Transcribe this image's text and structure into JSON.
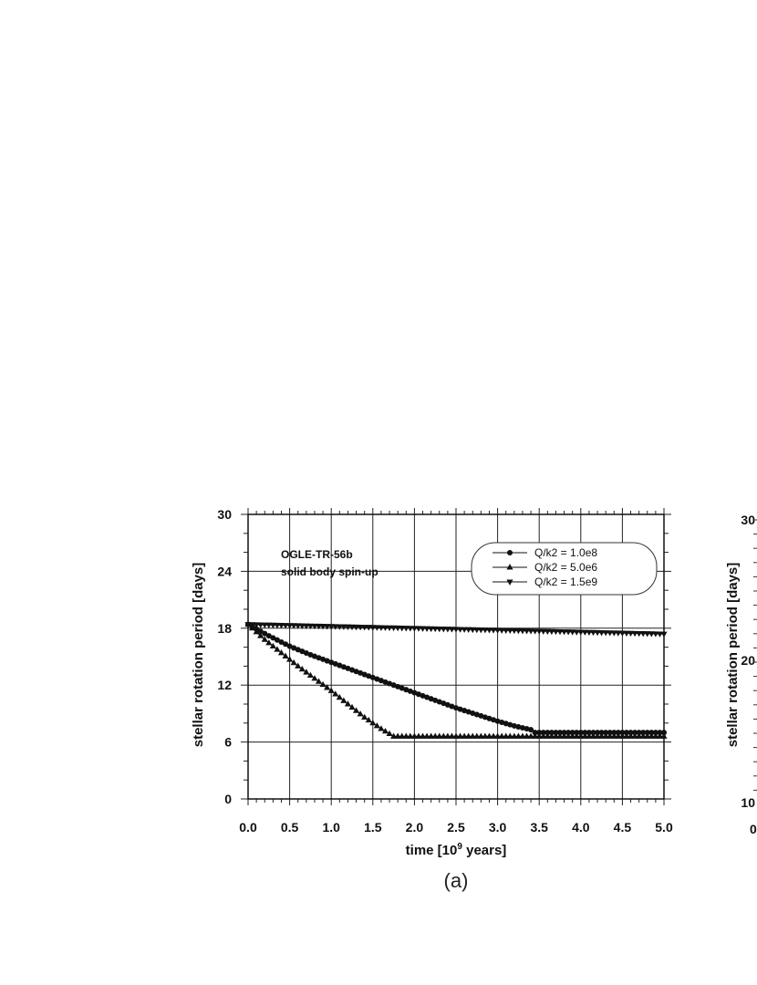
{
  "panel_label": "(a)",
  "chart_data": [
    {
      "type": "scatter",
      "title": "",
      "annotations": [
        "OGLE-TR-56b",
        "solid body spin-up"
      ],
      "xlabel_prefix": "time [10",
      "xlabel_exponent": "9",
      "xlabel_suffix": " years]",
      "ylabel": "stellar rotation period [days]",
      "xlim": [
        0,
        5
      ],
      "ylim": [
        0,
        30
      ],
      "xticks": [
        "0.0",
        "0.5",
        "1.0",
        "1.5",
        "2.0",
        "2.5",
        "3.0",
        "3.5",
        "4.0",
        "4.5",
        "5.0"
      ],
      "yticks": [
        "0",
        "6",
        "12",
        "18",
        "24",
        "30"
      ],
      "grid": true,
      "legend_position": "top-right",
      "series": [
        {
          "name": "Q/k2 = 1.0e8",
          "marker": "circle",
          "points": [
            [
              0.0,
              18.4
            ],
            [
              0.25,
              17.2
            ],
            [
              0.5,
              16.1
            ],
            [
              0.75,
              15.2
            ],
            [
              1.0,
              14.4
            ],
            [
              1.25,
              13.6
            ],
            [
              1.5,
              12.8
            ],
            [
              1.75,
              12.0
            ],
            [
              2.0,
              11.2
            ],
            [
              2.25,
              10.4
            ],
            [
              2.5,
              9.6
            ],
            [
              2.75,
              8.9
            ],
            [
              3.0,
              8.2
            ],
            [
              3.2,
              7.7
            ],
            [
              3.4,
              7.3
            ],
            [
              3.45,
              7.0
            ],
            [
              3.7,
              7.0
            ],
            [
              4.0,
              7.0
            ],
            [
              4.3,
              7.0
            ],
            [
              4.6,
              7.0
            ],
            [
              5.0,
              7.0
            ]
          ]
        },
        {
          "name": "Q/k2 = 5.0e6",
          "marker": "triangle-up",
          "points": [
            [
              0.0,
              18.4
            ],
            [
              0.2,
              16.8
            ],
            [
              0.4,
              15.4
            ],
            [
              0.6,
              14.0
            ],
            [
              0.8,
              12.7
            ],
            [
              1.0,
              11.4
            ],
            [
              1.2,
              10.0
            ],
            [
              1.4,
              8.6
            ],
            [
              1.6,
              7.4
            ],
            [
              1.75,
              6.6
            ],
            [
              2.0,
              6.6
            ],
            [
              2.5,
              6.6
            ],
            [
              3.0,
              6.6
            ],
            [
              3.5,
              6.6
            ],
            [
              4.0,
              6.6
            ],
            [
              4.5,
              6.6
            ],
            [
              5.0,
              6.6
            ]
          ]
        },
        {
          "name": "Q/k2 = 1.5e9",
          "marker": "triangle-down",
          "points": [
            [
              0.0,
              18.4
            ],
            [
              0.5,
              18.3
            ],
            [
              1.0,
              18.2
            ],
            [
              1.5,
              18.1
            ],
            [
              2.0,
              18.0
            ],
            [
              2.5,
              17.9
            ],
            [
              3.0,
              17.8
            ],
            [
              3.5,
              17.7
            ],
            [
              4.0,
              17.6
            ],
            [
              4.5,
              17.5
            ],
            [
              5.0,
              17.4
            ]
          ]
        }
      ]
    },
    {
      "type": "scatter",
      "title": "",
      "ylabel": "stellar rotation period [days]",
      "yticks": [
        "10",
        "20",
        "30"
      ],
      "xticks": [
        "0"
      ],
      "ylim": [
        10,
        30
      ],
      "partial": true
    }
  ]
}
